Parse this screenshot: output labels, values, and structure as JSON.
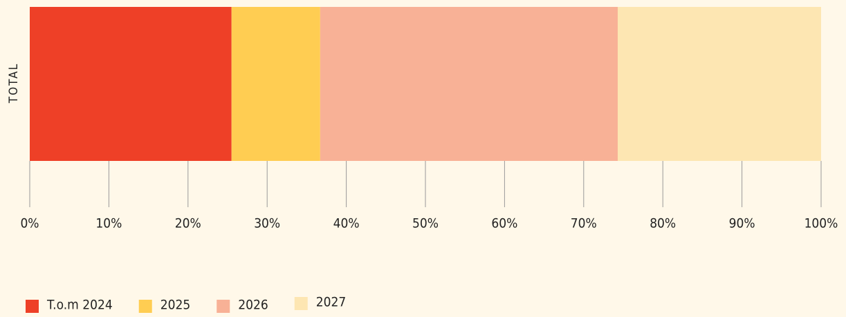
{
  "chart_data": {
    "type": "stacked_bar_horizontal",
    "categories": [
      "TOTAL"
    ],
    "series": [
      {
        "name": "T.o.m 2024",
        "color": "#ee4027",
        "values": [
          25.5
        ]
      },
      {
        "name": "2025",
        "color": "#ffcd52",
        "values": [
          11.2
        ]
      },
      {
        "name": "2026",
        "color": "#f8b196",
        "values": [
          37.6
        ]
      },
      {
        "name": "2027",
        "color": "#fde6b2",
        "values": [
          25.7
        ]
      }
    ],
    "xlim": [
      0,
      100
    ],
    "xticks": [
      {
        "value": 0,
        "label": "0%"
      },
      {
        "value": 10,
        "label": "10%"
      },
      {
        "value": 20,
        "label": "20%"
      },
      {
        "value": 30,
        "label": "30%"
      },
      {
        "value": 40,
        "label": "40%"
      },
      {
        "value": 50,
        "label": "50%"
      },
      {
        "value": 60,
        "label": "60%"
      },
      {
        "value": 70,
        "label": "70%"
      },
      {
        "value": 80,
        "label": "80%"
      },
      {
        "value": 90,
        "label": "90%"
      },
      {
        "value": 100,
        "label": "100%"
      }
    ],
    "legend": "bottom-left"
  }
}
